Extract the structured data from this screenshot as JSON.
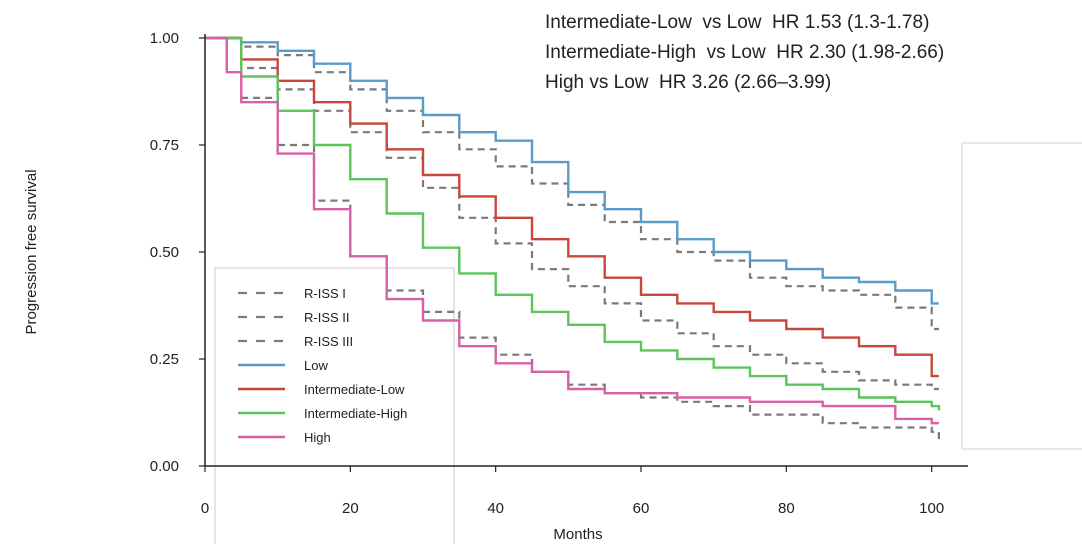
{
  "chart_data": {
    "type": "line",
    "title": "",
    "xlabel": "Months",
    "ylabel": "Progression free survival",
    "xlim": [
      0,
      105
    ],
    "ylim": [
      0,
      1.0
    ],
    "x_ticks": [
      0,
      20,
      40,
      60,
      80,
      100
    ],
    "y_ticks": [
      0.0,
      0.25,
      0.5,
      0.75,
      1.0
    ],
    "x_tick_labels": [
      "0",
      "20",
      "40",
      "60",
      "80",
      "100"
    ],
    "y_tick_labels": [
      "0.00",
      "0.25",
      "0.50",
      "0.75",
      "1.00"
    ],
    "grid": false,
    "legend_position": "bottom-left",
    "annotations": [
      "Intermediate-Low  vs Low  HR 1.53 (1.3-1.78)",
      "Intermediate-High  vs Low  HR 2.30 (1.98-2.66)",
      "High vs Low  HR 3.26 (2.66–3.99)"
    ],
    "series": [
      {
        "name": "R-ISS I",
        "color": "#7a7a7a",
        "dash": true,
        "x": [
          0,
          5,
          10,
          15,
          20,
          25,
          30,
          35,
          40,
          45,
          50,
          55,
          60,
          65,
          70,
          75,
          80,
          85,
          90,
          95,
          100,
          101
        ],
        "y": [
          1.0,
          0.98,
          0.96,
          0.92,
          0.88,
          0.83,
          0.78,
          0.74,
          0.7,
          0.66,
          0.61,
          0.57,
          0.53,
          0.5,
          0.48,
          0.44,
          0.42,
          0.41,
          0.4,
          0.37,
          0.32,
          0.32
        ]
      },
      {
        "name": "R-ISS II",
        "color": "#7a7a7a",
        "dash": true,
        "x": [
          0,
          5,
          10,
          15,
          20,
          25,
          30,
          35,
          40,
          45,
          50,
          55,
          60,
          65,
          70,
          75,
          80,
          85,
          90,
          95,
          100,
          101
        ],
        "y": [
          1.0,
          0.93,
          0.88,
          0.83,
          0.78,
          0.72,
          0.65,
          0.58,
          0.52,
          0.46,
          0.42,
          0.38,
          0.34,
          0.31,
          0.28,
          0.26,
          0.24,
          0.22,
          0.2,
          0.19,
          0.18,
          0.18
        ]
      },
      {
        "name": "R-ISS III",
        "color": "#7a7a7a",
        "dash": true,
        "x": [
          0,
          3,
          5,
          10,
          15,
          20,
          25,
          30,
          35,
          40,
          45,
          50,
          55,
          60,
          65,
          70,
          75,
          80,
          85,
          90,
          95,
          100,
          101
        ],
        "y": [
          1.0,
          0.92,
          0.86,
          0.75,
          0.62,
          0.49,
          0.41,
          0.36,
          0.3,
          0.26,
          0.22,
          0.19,
          0.17,
          0.16,
          0.15,
          0.14,
          0.12,
          0.12,
          0.1,
          0.09,
          0.09,
          0.08,
          0.06
        ]
      },
      {
        "name": "Low",
        "color": "#5b9cc7",
        "dash": false,
        "x": [
          0,
          5,
          10,
          15,
          20,
          25,
          30,
          35,
          40,
          45,
          50,
          55,
          60,
          65,
          70,
          75,
          80,
          85,
          90,
          95,
          100,
          101
        ],
        "y": [
          1.0,
          0.99,
          0.97,
          0.94,
          0.9,
          0.86,
          0.82,
          0.78,
          0.76,
          0.71,
          0.64,
          0.6,
          0.57,
          0.53,
          0.5,
          0.48,
          0.46,
          0.44,
          0.43,
          0.41,
          0.38,
          0.38
        ]
      },
      {
        "name": "Intermediate-Low",
        "color": "#c8473c",
        "dash": false,
        "x": [
          0,
          5,
          10,
          15,
          20,
          25,
          30,
          35,
          40,
          45,
          50,
          55,
          60,
          65,
          70,
          75,
          80,
          85,
          90,
          95,
          100,
          101
        ],
        "y": [
          1.0,
          0.95,
          0.9,
          0.85,
          0.8,
          0.74,
          0.68,
          0.63,
          0.58,
          0.53,
          0.49,
          0.44,
          0.4,
          0.38,
          0.36,
          0.34,
          0.32,
          0.3,
          0.28,
          0.26,
          0.21,
          0.21
        ]
      },
      {
        "name": "Intermediate-High",
        "color": "#5cc45a",
        "dash": false,
        "x": [
          0,
          5,
          10,
          15,
          20,
          25,
          30,
          35,
          40,
          45,
          50,
          55,
          60,
          65,
          70,
          75,
          80,
          85,
          90,
          95,
          100,
          101
        ],
        "y": [
          1.0,
          0.91,
          0.83,
          0.75,
          0.67,
          0.59,
          0.51,
          0.45,
          0.4,
          0.36,
          0.33,
          0.29,
          0.27,
          0.25,
          0.23,
          0.21,
          0.19,
          0.18,
          0.16,
          0.15,
          0.14,
          0.13
        ]
      },
      {
        "name": "High",
        "color": "#d861a6",
        "dash": false,
        "x": [
          0,
          3,
          5,
          10,
          15,
          20,
          25,
          30,
          35,
          40,
          45,
          50,
          55,
          60,
          65,
          70,
          75,
          80,
          85,
          90,
          95,
          100,
          101
        ],
        "y": [
          1.0,
          0.92,
          0.85,
          0.73,
          0.6,
          0.49,
          0.39,
          0.34,
          0.28,
          0.24,
          0.22,
          0.18,
          0.17,
          0.17,
          0.16,
          0.16,
          0.15,
          0.15,
          0.14,
          0.14,
          0.11,
          0.1,
          0.1
        ]
      }
    ]
  }
}
